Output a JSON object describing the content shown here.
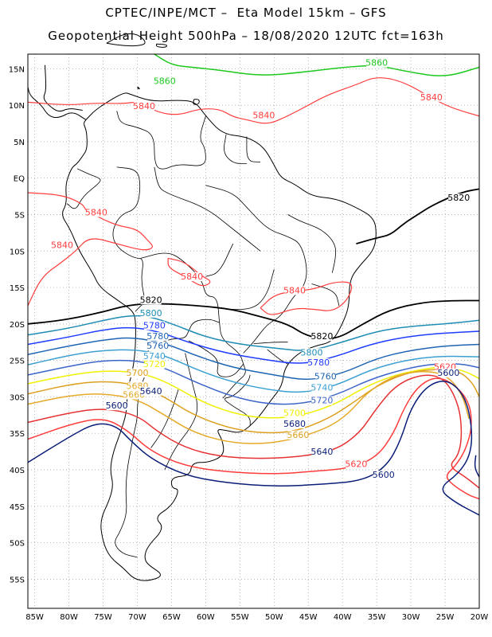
{
  "title": {
    "line1": "CPTEC/INPE/MCT –  Eta Model 15km – GFS",
    "line2": "Geopotential Height 500hPa – 18/08/2020 12UTC fct=163h"
  },
  "axes": {
    "lon_labels": [
      "85W",
      "80W",
      "75W",
      "70W",
      "65W",
      "60W",
      "55W",
      "50W",
      "45W",
      "40W",
      "35W",
      "30W",
      "25W",
      "20W"
    ],
    "lat_labels": [
      "15N",
      "10N",
      "5N",
      "EQ",
      "5S",
      "10S",
      "15S",
      "20S",
      "25S",
      "30S",
      "35S",
      "40S",
      "45S",
      "50S",
      "55S"
    ],
    "lon_range": [
      -86,
      -20
    ],
    "lat_range": [
      17,
      -59
    ],
    "grid": "dotted"
  },
  "contour_colors": {
    "5860": "#1ec81e",
    "5840": "#ff3c3c",
    "5820": "#000000",
    "5800": "#1e8cb4",
    "5780": "#1e3cff",
    "5760": "#1e64b4",
    "5740": "#3ca0d2",
    "5720": "#3c64c8",
    "5700": "#f0f000",
    "5680": "#dca01e",
    "5660": "#e6aa2a",
    "5640": "#e63232",
    "5620": "#ff3c3c",
    "5600": "#0a1e78"
  },
  "contour_labels": [
    {
      "text": "5860",
      "lon": -35,
      "lat": 15.5,
      "color": "#1ec81e"
    },
    {
      "text": "5860",
      "lon": -66,
      "lat": 13,
      "color": "#1ec81e"
    },
    {
      "text": "5840",
      "lon": -27,
      "lat": 10.8,
      "color": "#ff3c3c"
    },
    {
      "text": "5840",
      "lon": -69,
      "lat": 9.6,
      "color": "#ff3c3c"
    },
    {
      "text": "5840",
      "lon": -51.5,
      "lat": 8.3,
      "color": "#ff3c3c"
    },
    {
      "text": "5840",
      "lon": -76,
      "lat": -5,
      "color": "#ff3c3c"
    },
    {
      "text": "5840",
      "lon": -81,
      "lat": -9.5,
      "color": "#ff3c3c"
    },
    {
      "text": "5840",
      "lon": -62,
      "lat": -13.8,
      "color": "#ff3c3c"
    },
    {
      "text": "5840",
      "lon": -47,
      "lat": -15.7,
      "color": "#ff3c3c"
    },
    {
      "text": "5820",
      "lon": -23,
      "lat": -3,
      "color": "#000000"
    },
    {
      "text": "5820",
      "lon": -68,
      "lat": -17,
      "color": "#000000"
    },
    {
      "text": "5820",
      "lon": -43,
      "lat": -22,
      "color": "#000000"
    },
    {
      "text": "5800",
      "lon": -68,
      "lat": -18.8,
      "color": "#1e8cb4"
    },
    {
      "text": "5800",
      "lon": -44.5,
      "lat": -24.2,
      "color": "#1e8cb4"
    },
    {
      "text": "5780",
      "lon": -67.5,
      "lat": -20.5,
      "color": "#1e3cff"
    },
    {
      "text": "5780",
      "lon": -67,
      "lat": -22,
      "color": "#1e64b4"
    },
    {
      "text": "5780",
      "lon": -43.5,
      "lat": -25.6,
      "color": "#1e3cff"
    },
    {
      "text": "5760",
      "lon": -67,
      "lat": -23.3,
      "color": "#1e64b4"
    },
    {
      "text": "5760",
      "lon": -42.5,
      "lat": -27.5,
      "color": "#1e64b4"
    },
    {
      "text": "5740",
      "lon": -67.5,
      "lat": -24.7,
      "color": "#3ca0d2"
    },
    {
      "text": "5740",
      "lon": -43,
      "lat": -29,
      "color": "#3ca0d2"
    },
    {
      "text": "5720",
      "lon": -67.5,
      "lat": -25.8,
      "color": "#f0f000"
    },
    {
      "text": "5720",
      "lon": -43,
      "lat": -30.8,
      "color": "#3c64c8"
    },
    {
      "text": "5700",
      "lon": -70,
      "lat": -27,
      "color": "#dca01e"
    },
    {
      "text": "5700",
      "lon": -47,
      "lat": -32.5,
      "color": "#f0f000"
    },
    {
      "text": "5680",
      "lon": -70,
      "lat": -28.8,
      "color": "#e6aa2a"
    },
    {
      "text": "5680",
      "lon": -47,
      "lat": -34,
      "color": "#0a1e78"
    },
    {
      "text": "5660",
      "lon": -70.5,
      "lat": -30,
      "color": "#e6aa2a"
    },
    {
      "text": "5660",
      "lon": -46.5,
      "lat": -35.5,
      "color": "#dca01e"
    },
    {
      "text": "5640",
      "lon": -68,
      "lat": -29.5,
      "color": "#0a1e78"
    },
    {
      "text": "5640",
      "lon": -43,
      "lat": -37.8,
      "color": "#0a1e78"
    },
    {
      "text": "5620",
      "lon": -38,
      "lat": -39.5,
      "color": "#ff3c3c"
    },
    {
      "text": "5620",
      "lon": -25,
      "lat": -26.2,
      "color": "#ff3c3c"
    },
    {
      "text": "5600",
      "lon": -34,
      "lat": -41,
      "color": "#0a1e78"
    },
    {
      "text": "5600",
      "lon": -73,
      "lat": -31.5,
      "color": "#0a1e78"
    },
    {
      "text": "5600",
      "lon": -24.5,
      "lat": -27,
      "color": "#0a1e78"
    }
  ]
}
